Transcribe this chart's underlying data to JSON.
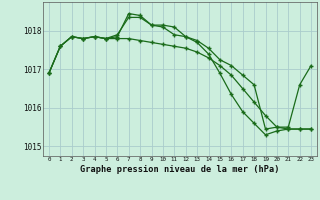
{
  "background_color": "#cceedd",
  "grid_color": "#aacccc",
  "line_color": "#1a6b1a",
  "title": "Graphe pression niveau de la mer (hPa)",
  "xlim": [
    -0.5,
    23.5
  ],
  "ylim": [
    1014.75,
    1018.75
  ],
  "yticks": [
    1015,
    1016,
    1017,
    1018
  ],
  "xticks": [
    0,
    1,
    2,
    3,
    4,
    5,
    6,
    7,
    8,
    9,
    10,
    11,
    12,
    13,
    14,
    15,
    16,
    17,
    18,
    19,
    20,
    21,
    22,
    23
  ],
  "series": [
    {
      "x": [
        0,
        1,
        2,
        3,
        4,
        5,
        6,
        7,
        8,
        9,
        10,
        11,
        12,
        13,
        14,
        15,
        16,
        17,
        18,
        19,
        20,
        21,
        22,
        23
      ],
      "y": [
        1016.9,
        1017.6,
        1017.85,
        1017.8,
        1017.85,
        1017.8,
        1017.85,
        1018.45,
        1018.4,
        1018.15,
        1018.15,
        1018.1,
        1017.85,
        1017.75,
        1017.55,
        1017.25,
        1017.1,
        1016.85,
        1016.6,
        1015.45,
        1015.5,
        1015.5,
        1016.6,
        1017.1
      ]
    },
    {
      "x": [
        0,
        1,
        2,
        3,
        4,
        5,
        6,
        7,
        8,
        9,
        10,
        11,
        12,
        13,
        14,
        15,
        16,
        17,
        18,
        19,
        20,
        21,
        22,
        23
      ],
      "y": [
        1016.9,
        1017.6,
        1017.85,
        1017.8,
        1017.85,
        1017.8,
        1017.9,
        1018.35,
        1018.35,
        1018.15,
        1018.1,
        1017.9,
        1017.85,
        1017.7,
        1017.4,
        1016.9,
        1016.35,
        1015.9,
        1015.6,
        1015.3,
        1015.4,
        1015.45,
        1015.45,
        1015.45
      ]
    },
    {
      "x": [
        0,
        1,
        2,
        3,
        4,
        5,
        6,
        7,
        8,
        9,
        10,
        11,
        12,
        13,
        14,
        15,
        16,
        17,
        18,
        19,
        20,
        21,
        22,
        23
      ],
      "y": [
        1016.9,
        1017.6,
        1017.85,
        1017.8,
        1017.85,
        1017.8,
        1017.8,
        1017.8,
        1017.75,
        1017.7,
        1017.65,
        1017.6,
        1017.55,
        1017.45,
        1017.3,
        1017.1,
        1016.85,
        1016.5,
        1016.15,
        1015.8,
        1015.5,
        1015.45,
        1015.45,
        1015.45
      ]
    }
  ]
}
